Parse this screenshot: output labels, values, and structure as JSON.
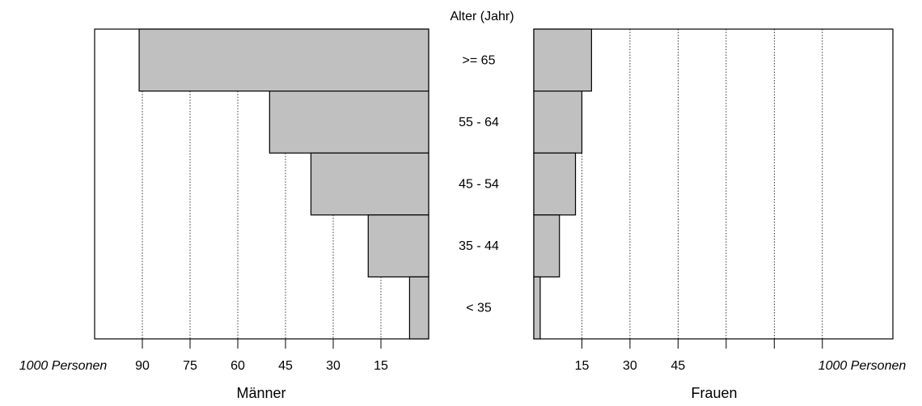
{
  "chart_data": {
    "type": "bar",
    "layout": "population-pyramid",
    "center_header": "Alter (Jahr)",
    "categories": [
      ">= 65",
      "55 - 64",
      "45 - 54",
      "35 - 44",
      "< 35"
    ],
    "unit_label": "1000 Personen",
    "series": [
      {
        "name": "Männer",
        "direction": "left",
        "values": [
          91,
          50,
          37,
          19,
          6
        ],
        "xlim": [
          0,
          105
        ],
        "ticks": [
          90,
          75,
          60,
          45,
          30,
          15
        ],
        "tick_labels": [
          "90",
          "75",
          "60",
          "45",
          "30",
          "15"
        ]
      },
      {
        "name": "Frauen",
        "direction": "right",
        "values": [
          18,
          15,
          13,
          8,
          2
        ],
        "xlim": [
          0,
          112
        ],
        "ticks": [
          15,
          30,
          45,
          60,
          75,
          90
        ],
        "tick_labels": [
          "15",
          "30",
          "45",
          "",
          "",
          ""
        ]
      }
    ],
    "bar_color": "#c0c0c0",
    "grid": "vertical dotted"
  }
}
